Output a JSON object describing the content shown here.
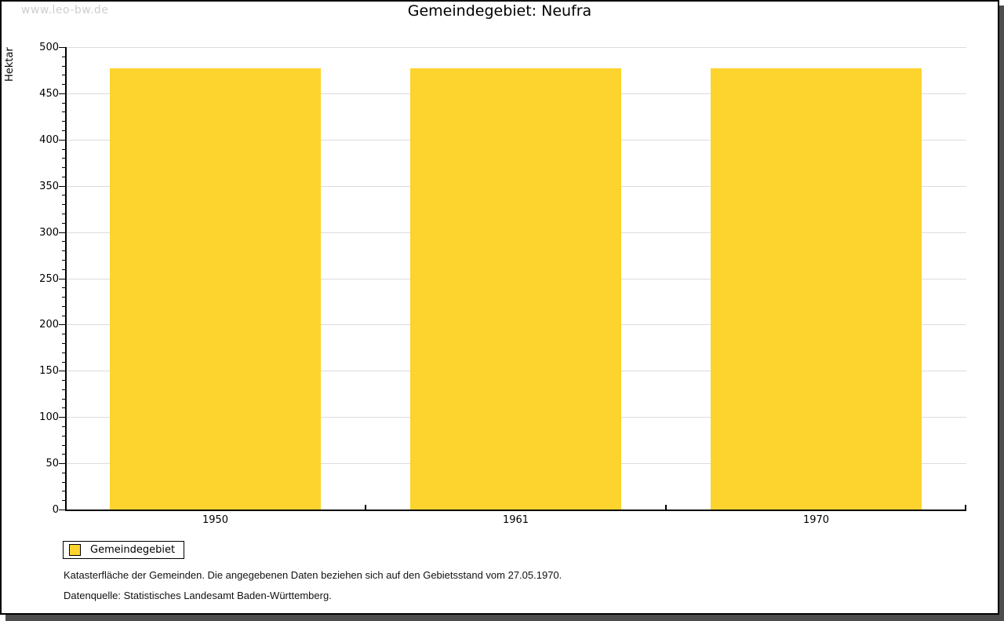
{
  "watermark": "www.leo-bw.de",
  "title": "Gemeindegebiet: Neufra",
  "legend": {
    "label": "Gemeindegebiet",
    "swatch_color": "#fdd32e"
  },
  "notes": {
    "line1": "Katasterfläche der Gemeinden. Die angegebenen Daten beziehen sich auf den Gebietsstand vom 27.05.1970.",
    "line2": "Datenquelle: Statistisches Landesamt Baden-Württemberg."
  },
  "chart_data": {
    "type": "bar",
    "title": "Gemeindegebiet: Neufra",
    "categories": [
      "1950",
      "1961",
      "1970"
    ],
    "series": [
      {
        "name": "Gemeindegebiet",
        "values": [
          477,
          477,
          477
        ],
        "color": "#fdd32e"
      }
    ],
    "xlabel": "",
    "ylabel": "Hektar",
    "ylim": [
      0,
      500
    ],
    "ytick_step": 50,
    "minor_tick_step": 10,
    "grid": true,
    "legend_position": "bottom-left",
    "colors": {
      "bar": "#fdd32e",
      "grid": "#dcdcdc",
      "axis": "#000000",
      "frame_shadow": "#4d4d4d",
      "watermark_text": "#cdcdcd"
    }
  }
}
